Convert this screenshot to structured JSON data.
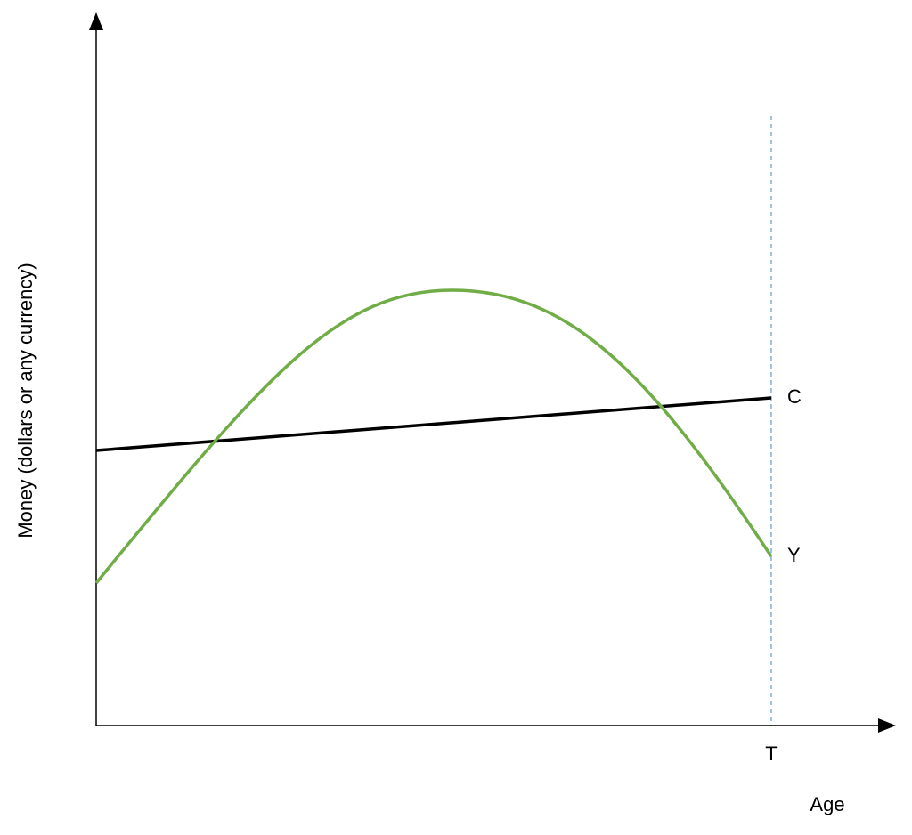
{
  "y_axis_label": "Money (dollars or any currency)",
  "x_axis_label": "Age",
  "x_marker": "T",
  "curves": [
    {
      "label": "C"
    },
    {
      "label": "Y"
    }
  ]
}
